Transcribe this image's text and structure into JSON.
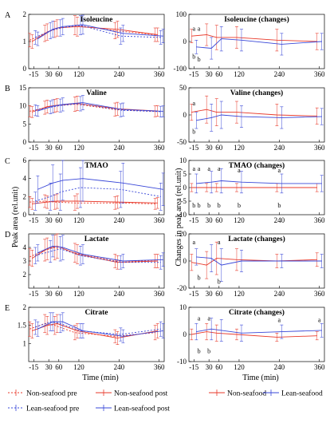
{
  "figure": {
    "y_axis_label_left": "Peak area (rel.unit)",
    "y_axis_label_right": "Changes in peak area (rel.unit)",
    "x_axis_label": "Time (min)"
  },
  "colors": {
    "non_seafood": "#e8392a",
    "lean_seafood": "#3a48d8",
    "axis": "#000000",
    "panel_letter": "#000000"
  },
  "legend": [
    {
      "label": "Non-seafood pre",
      "color": "#e8392a",
      "style": "dotted"
    },
    {
      "label": "Non-seafood post",
      "color": "#e8392a",
      "style": "solid-err"
    },
    {
      "label": "Non-seafood",
      "color": "#e8392a",
      "style": "solid"
    },
    {
      "label": "Lean-seafood",
      "color": "#3a48d8",
      "style": "solid"
    },
    {
      "label": "Lean-seafood pre",
      "color": "#3a48d8",
      "style": "dotted"
    },
    {
      "label": "Lean-seafood post",
      "color": "#3a48d8",
      "style": "solid"
    }
  ],
  "chart_data": [
    {
      "type": "line",
      "panel": "A",
      "title": "Isoleucine",
      "ylim": [
        0,
        2
      ],
      "yticks": [
        0,
        1,
        2
      ],
      "x": [
        -15,
        30,
        60,
        120,
        240,
        360
      ],
      "xticks": [
        "-15",
        "30",
        "60",
        "120",
        "240",
        "360"
      ],
      "series": [
        {
          "name": "Non-seafood pre",
          "color": "#e8392a",
          "dash": "2,2",
          "values": [
            1.05,
            1.3,
            1.45,
            1.6,
            1.4,
            1.25
          ],
          "err": [
            0.25,
            0.3,
            0.3,
            0.35,
            0.3,
            0.25
          ],
          "x_offset": -5
        },
        {
          "name": "Non-seafood post",
          "color": "#e8392a",
          "dash": "",
          "values": [
            1.0,
            1.35,
            1.5,
            1.55,
            1.45,
            1.25
          ],
          "err": [
            0.25,
            0.3,
            0.3,
            0.35,
            0.3,
            0.25
          ],
          "x_offset": -2
        },
        {
          "name": "Lean-seafood pre",
          "color": "#3a48d8",
          "dash": "2,2",
          "values": [
            1.15,
            1.4,
            1.5,
            1.6,
            1.2,
            1.15
          ],
          "err": [
            0.25,
            0.3,
            0.3,
            0.35,
            0.3,
            0.25
          ],
          "x_offset": 2
        },
        {
          "name": "Lean-seafood post",
          "color": "#3a48d8",
          "dash": "",
          "values": [
            1.1,
            1.45,
            1.55,
            1.62,
            1.3,
            1.2
          ],
          "err": [
            0.25,
            0.3,
            0.3,
            0.35,
            0.3,
            0.25
          ],
          "x_offset": 5
        }
      ],
      "annotations": []
    },
    {
      "type": "line",
      "panel": "",
      "title": "Isoleucine (changes)",
      "ylim": [
        -100,
        100
      ],
      "yticks": [
        -100,
        0,
        100
      ],
      "x": [
        -15,
        30,
        60,
        120,
        240,
        360
      ],
      "xticks": [
        "-15",
        "30",
        "60",
        "120",
        "240",
        "360"
      ],
      "series": [
        {
          "name": "Non-seafood",
          "color": "#e8392a",
          "dash": "",
          "values": [
            20,
            25,
            15,
            15,
            5,
            0
          ],
          "err": [
            25,
            40,
            45,
            40,
            40,
            30
          ],
          "x_offset": -3
        },
        {
          "name": "Lean-seafood",
          "color": "#3a48d8",
          "dash": "",
          "values": [
            -20,
            -25,
            10,
            5,
            -10,
            0
          ],
          "err": [
            25,
            40,
            45,
            40,
            40,
            30
          ],
          "x_offset": 3
        }
      ],
      "annotations": [
        {
          "x": -15,
          "y": 48,
          "text": "a"
        },
        {
          "x": 0,
          "y": 48,
          "text": "a"
        },
        {
          "x": -15,
          "y": -55,
          "text": "b"
        },
        {
          "x": 0,
          "y": -65,
          "text": "b"
        }
      ]
    },
    {
      "type": "line",
      "panel": "B",
      "title": "Valine",
      "ylim": [
        0,
        15
      ],
      "yticks": [
        0,
        5,
        10,
        15
      ],
      "x": [
        -15,
        30,
        60,
        120,
        240,
        360
      ],
      "xticks": [
        "-15",
        "30",
        "60",
        "120",
        "240",
        "360"
      ],
      "series": [
        {
          "name": "Non-seafood pre",
          "color": "#e8392a",
          "dash": "2,2",
          "values": [
            8.5,
            9.5,
            10.0,
            10.5,
            9.0,
            8.5
          ],
          "err": [
            1.5,
            1.8,
            1.8,
            2.0,
            1.8,
            1.5
          ],
          "x_offset": -5
        },
        {
          "name": "Non-seafood post",
          "color": "#e8392a",
          "dash": "",
          "values": [
            8.3,
            9.8,
            10.2,
            10.7,
            9.2,
            8.6
          ],
          "err": [
            1.5,
            1.8,
            1.8,
            2.0,
            1.8,
            1.5
          ],
          "x_offset": -2
        },
        {
          "name": "Lean-seafood pre",
          "color": "#3a48d8",
          "dash": "2,2",
          "values": [
            8.8,
            9.6,
            10.1,
            10.6,
            8.8,
            8.4
          ],
          "err": [
            1.5,
            1.8,
            1.8,
            2.0,
            1.8,
            1.5
          ],
          "x_offset": 2
        },
        {
          "name": "Lean-seafood post",
          "color": "#3a48d8",
          "dash": "",
          "values": [
            8.6,
            9.9,
            10.4,
            10.9,
            9.0,
            8.5
          ],
          "err": [
            1.5,
            1.8,
            1.8,
            2.0,
            1.8,
            1.5
          ],
          "x_offset": 5
        }
      ],
      "annotations": []
    },
    {
      "type": "line",
      "panel": "",
      "title": "Valine (changes)",
      "ylim": [
        -50,
        50
      ],
      "yticks": [
        -50,
        0,
        50
      ],
      "x": [
        -15,
        30,
        60,
        120,
        240,
        360
      ],
      "xticks": [
        "-15",
        "30",
        "60",
        "120",
        "240",
        "360"
      ],
      "series": [
        {
          "name": "Non-seafood",
          "color": "#e8392a",
          "dash": "",
          "values": [
            5,
            10,
            5,
            5,
            0,
            -2
          ],
          "err": [
            15,
            25,
            25,
            20,
            20,
            15
          ],
          "x_offset": -3
        },
        {
          "name": "Lean-seafood",
          "color": "#3a48d8",
          "dash": "",
          "values": [
            -10,
            -5,
            0,
            -3,
            -5,
            -3
          ],
          "err": [
            15,
            25,
            25,
            20,
            20,
            15
          ],
          "x_offset": 3
        }
      ],
      "annotations": [
        {
          "x": -15,
          "y": 22,
          "text": "a"
        },
        {
          "x": -15,
          "y": -30,
          "text": "b"
        }
      ]
    },
    {
      "type": "line",
      "panel": "C",
      "title": "TMAO",
      "ylim": [
        0,
        6
      ],
      "yticks": [
        0,
        2,
        4,
        6
      ],
      "x": [
        -15,
        30,
        60,
        120,
        240,
        360
      ],
      "xticks": [
        "-15",
        "30",
        "60",
        "120",
        "240",
        "360"
      ],
      "series": [
        {
          "name": "Non-seafood pre",
          "color": "#e8392a",
          "dash": "2,2",
          "values": [
            1.4,
            1.5,
            1.4,
            1.3,
            1.3,
            1.2
          ],
          "err": [
            0.6,
            0.7,
            0.8,
            0.8,
            0.7,
            0.6
          ],
          "x_offset": -5
        },
        {
          "name": "Non-seafood post",
          "color": "#e8392a",
          "dash": "",
          "values": [
            1.2,
            1.4,
            1.5,
            1.5,
            1.4,
            1.3
          ],
          "err": [
            0.6,
            0.7,
            0.8,
            0.8,
            0.7,
            0.6
          ],
          "x_offset": -2
        },
        {
          "name": "Lean-seafood pre",
          "color": "#3a48d8",
          "dash": "2,2",
          "values": [
            1.5,
            2.0,
            2.5,
            3.0,
            2.8,
            2.0
          ],
          "err": [
            1.0,
            1.5,
            2.0,
            2.2,
            2.0,
            1.5
          ],
          "x_offset": 2
        },
        {
          "name": "Lean-seafood post",
          "color": "#3a48d8",
          "dash": "",
          "values": [
            2.8,
            3.5,
            3.8,
            4.0,
            3.5,
            2.8
          ],
          "err": [
            1.5,
            2.0,
            2.2,
            2.5,
            2.2,
            1.8
          ],
          "x_offset": 5
        }
      ],
      "annotations": []
    },
    {
      "type": "line",
      "panel": "",
      "title": "TMAO (changes)",
      "ylim": [
        -10,
        10
      ],
      "yticks": [
        -10,
        -5,
        0,
        5,
        10
      ],
      "x": [
        -15,
        30,
        60,
        120,
        240,
        360
      ],
      "xticks": [
        "-15",
        "30",
        "60",
        "120",
        "240",
        "360"
      ],
      "series": [
        {
          "name": "Non-seafood",
          "color": "#e8392a",
          "dash": "",
          "values": [
            0,
            0,
            0,
            0,
            0,
            0
          ],
          "err": [
            1.5,
            1.5,
            1.5,
            1.5,
            1.5,
            1.5
          ],
          "x_offset": -3
        },
        {
          "name": "Lean-seafood",
          "color": "#3a48d8",
          "dash": "",
          "values": [
            1.5,
            2.0,
            2.5,
            2.0,
            1.5,
            1.5
          ],
          "err": [
            3.5,
            4.0,
            4.5,
            4.0,
            3.5,
            3.0
          ],
          "x_offset": 3
        }
      ],
      "annotations": [
        {
          "x": -15,
          "y": 7,
          "text": "a"
        },
        {
          "x": 0,
          "y": 7,
          "text": "a"
        },
        {
          "x": 30,
          "y": 7,
          "text": "a"
        },
        {
          "x": 60,
          "y": 7,
          "text": "a"
        },
        {
          "x": 120,
          "y": 6.5,
          "text": "a"
        },
        {
          "x": 240,
          "y": 6.5,
          "text": "a"
        },
        {
          "x": -15,
          "y": -6.5,
          "text": "b"
        },
        {
          "x": 0,
          "y": -6.5,
          "text": "b"
        },
        {
          "x": 30,
          "y": -6.5,
          "text": "b"
        },
        {
          "x": 60,
          "y": -6.5,
          "text": "b"
        },
        {
          "x": 120,
          "y": -6.5,
          "text": "b"
        },
        {
          "x": 240,
          "y": -6.5,
          "text": "b"
        }
      ]
    },
    {
      "type": "line",
      "panel": "D",
      "title": "Lactate",
      "ylim": [
        1,
        5
      ],
      "yticks": [
        2,
        3,
        4
      ],
      "x": [
        -15,
        30,
        60,
        120,
        240,
        360
      ],
      "xticks": [
        "-15",
        "30",
        "60",
        "120",
        "240",
        "360"
      ],
      "series": [
        {
          "name": "Non-seafood pre",
          "color": "#e8392a",
          "dash": "2,2",
          "values": [
            3.3,
            3.8,
            4.0,
            3.6,
            3.0,
            3.0
          ],
          "err": [
            0.6,
            0.8,
            0.9,
            0.7,
            0.5,
            0.5
          ],
          "x_offset": -5
        },
        {
          "name": "Non-seafood post",
          "color": "#e8392a",
          "dash": "",
          "values": [
            3.2,
            3.9,
            4.1,
            3.5,
            2.9,
            3.0
          ],
          "err": [
            0.6,
            0.8,
            0.9,
            0.7,
            0.5,
            0.5
          ],
          "x_offset": -2
        },
        {
          "name": "Lean-seafood pre",
          "color": "#3a48d8",
          "dash": "2,2",
          "values": [
            3.4,
            3.7,
            3.9,
            3.4,
            2.9,
            2.9
          ],
          "err": [
            0.6,
            0.8,
            0.9,
            0.7,
            0.5,
            0.5
          ],
          "x_offset": 2
        },
        {
          "name": "Lean-seafood post",
          "color": "#3a48d8",
          "dash": "",
          "values": [
            3.6,
            4.1,
            4.0,
            3.5,
            3.0,
            3.1
          ],
          "err": [
            0.6,
            0.8,
            0.9,
            0.7,
            0.5,
            0.5
          ],
          "x_offset": 5
        }
      ],
      "annotations": []
    },
    {
      "type": "line",
      "panel": "",
      "title": "Lactate (changes)",
      "ylim": [
        -20,
        20
      ],
      "yticks": [
        -20,
        0,
        20
      ],
      "x": [
        -15,
        30,
        60,
        120,
        240,
        360
      ],
      "xticks": [
        "-15",
        "30",
        "60",
        "120",
        "240",
        "360"
      ],
      "series": [
        {
          "name": "Non-seafood",
          "color": "#e8392a",
          "dash": "",
          "values": [
            -1,
            -3,
            2,
            1,
            0,
            1
          ],
          "err": [
            6,
            10,
            12,
            8,
            5,
            5
          ],
          "x_offset": -3
        },
        {
          "name": "Lean-seafood",
          "color": "#3a48d8",
          "dash": "",
          "values": [
            3,
            2,
            -3,
            0,
            0,
            0
          ],
          "err": [
            6,
            10,
            12,
            8,
            5,
            5
          ],
          "x_offset": 3
        }
      ],
      "annotations": [
        {
          "x": -15,
          "y": 14,
          "text": "a"
        },
        {
          "x": 60,
          "y": 14,
          "text": "a"
        },
        {
          "x": 0,
          "y": -12,
          "text": "b"
        },
        {
          "x": 60,
          "y": -15,
          "text": "b"
        }
      ]
    },
    {
      "type": "line",
      "panel": "E",
      "title": "Citrate",
      "ylim": [
        0.5,
        2
      ],
      "yticks": [
        1,
        1.5,
        2
      ],
      "x": [
        -15,
        30,
        60,
        120,
        240,
        360
      ],
      "xticks": [
        "-15",
        "30",
        "60",
        "120",
        "240",
        "360"
      ],
      "series": [
        {
          "name": "Non-seafood pre",
          "color": "#e8392a",
          "dash": "2,2",
          "values": [
            1.4,
            1.55,
            1.5,
            1.3,
            1.2,
            1.3
          ],
          "err": [
            0.2,
            0.25,
            0.25,
            0.2,
            0.18,
            0.2
          ],
          "x_offset": -5
        },
        {
          "name": "Non-seafood post",
          "color": "#e8392a",
          "dash": "",
          "values": [
            1.35,
            1.5,
            1.55,
            1.35,
            1.15,
            1.35
          ],
          "err": [
            0.2,
            0.25,
            0.25,
            0.2,
            0.18,
            0.2
          ],
          "x_offset": -2
        },
        {
          "name": "Lean-seafood pre",
          "color": "#3a48d8",
          "dash": "2,2",
          "values": [
            1.45,
            1.6,
            1.55,
            1.35,
            1.25,
            1.4
          ],
          "err": [
            0.2,
            0.25,
            0.25,
            0.2,
            0.18,
            0.2
          ],
          "x_offset": 2
        },
        {
          "name": "Lean-seafood post",
          "color": "#3a48d8",
          "dash": "",
          "values": [
            1.4,
            1.6,
            1.6,
            1.35,
            1.2,
            1.35
          ],
          "err": [
            0.2,
            0.25,
            0.25,
            0.2,
            0.18,
            0.2
          ],
          "x_offset": 5
        }
      ],
      "annotations": []
    },
    {
      "type": "line",
      "panel": "",
      "title": "Citrate (changes)",
      "ylim": [
        -10,
        10
      ],
      "yticks": [
        -10,
        0,
        10
      ],
      "x": [
        -15,
        30,
        60,
        120,
        240,
        360
      ],
      "xticks": [
        "-15",
        "30",
        "60",
        "120",
        "240",
        "360"
      ],
      "series": [
        {
          "name": "Non-seafood",
          "color": "#e8392a",
          "dash": "",
          "values": [
            0,
            1,
            0.5,
            0,
            -1,
            -0.5
          ],
          "err": [
            2,
            3,
            3,
            2,
            1.5,
            1.5
          ],
          "x_offset": -3
        },
        {
          "name": "Lean-seafood",
          "color": "#3a48d8",
          "dash": "",
          "values": [
            1,
            2,
            1.5,
            0.5,
            1,
            1.5
          ],
          "err": [
            3,
            4,
            4,
            3,
            2.5,
            2.5
          ],
          "x_offset": 3
        }
      ],
      "annotations": [
        {
          "x": 0,
          "y": 6,
          "text": "a"
        },
        {
          "x": 30,
          "y": 6,
          "text": "a"
        },
        {
          "x": 240,
          "y": 5.5,
          "text": "a"
        },
        {
          "x": 360,
          "y": 5.5,
          "text": "a"
        },
        {
          "x": 0,
          "y": -6,
          "text": "b"
        },
        {
          "x": 30,
          "y": -6,
          "text": "b"
        }
      ]
    }
  ]
}
